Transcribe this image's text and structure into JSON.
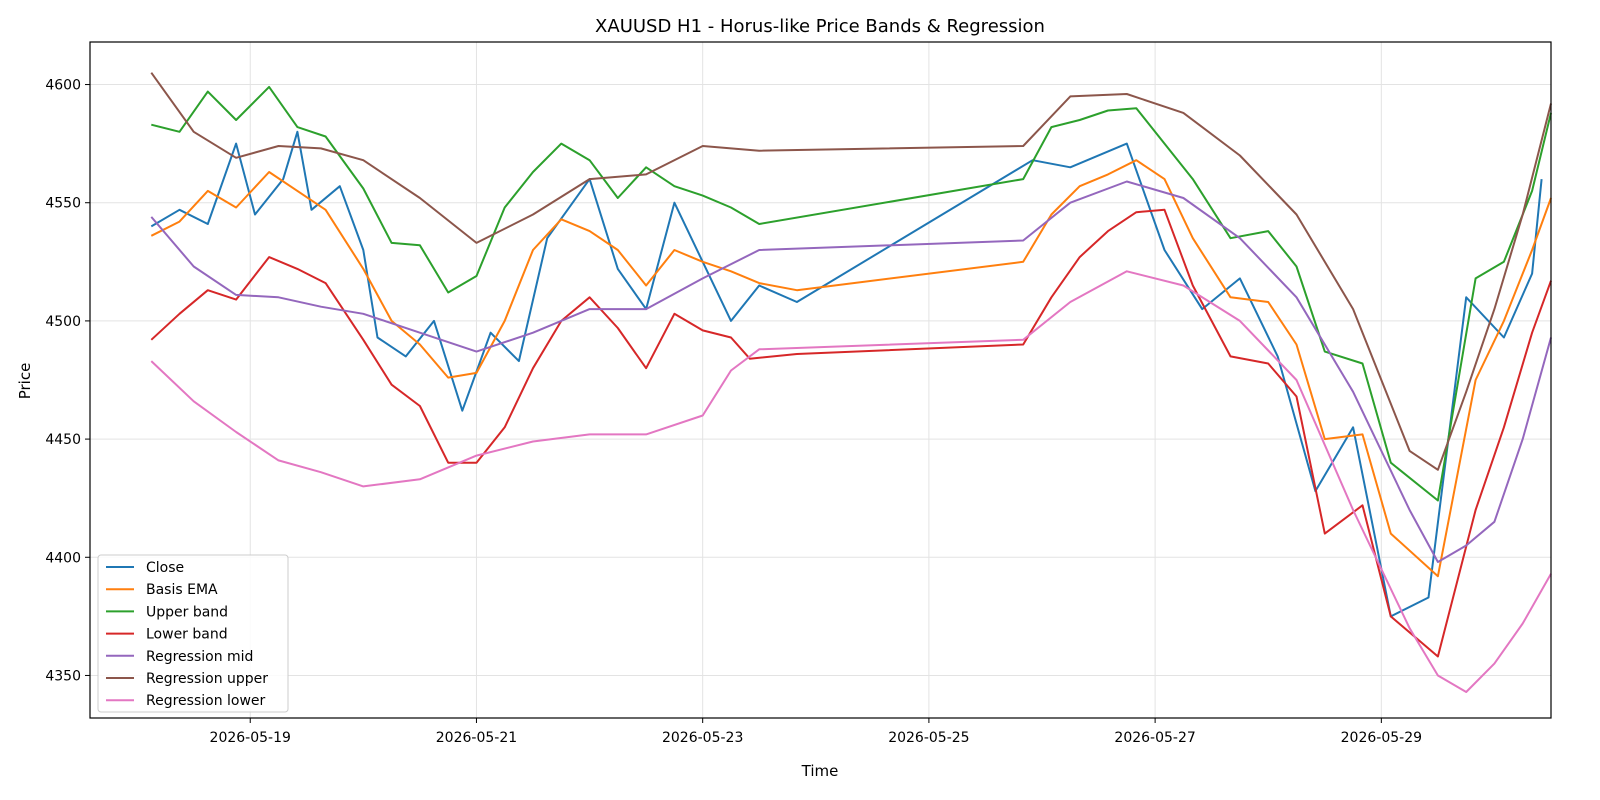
{
  "chart_data": {
    "type": "line",
    "title": "XAUUSD H1 - Horus-like Price Bands & Regression",
    "xlabel": "Time",
    "ylabel": "Price",
    "x_axis": "date",
    "xlim": [
      "2026-05-17 14:00",
      "2026-05-30 12:00"
    ],
    "ylim": [
      4332,
      4618
    ],
    "xticks": [
      "2026-05-19",
      "2026-05-21",
      "2026-05-23",
      "2026-05-25",
      "2026-05-27",
      "2026-05-29"
    ],
    "yticks": [
      4350,
      4400,
      4450,
      4500,
      4550,
      4600
    ],
    "grid": true,
    "legend_position": "lower-left",
    "series": [
      {
        "name": "Close",
        "color": "#1f77b4",
        "points": [
          [
            "2026-05-18 03:00",
            4540
          ],
          [
            "2026-05-18 09:00",
            4547
          ],
          [
            "2026-05-18 15:00",
            4541
          ],
          [
            "2026-05-18 21:00",
            4575
          ],
          [
            "2026-05-19 01:00",
            4545
          ],
          [
            "2026-05-19 07:00",
            4560
          ],
          [
            "2026-05-19 10:00",
            4580
          ],
          [
            "2026-05-19 13:00",
            4547
          ],
          [
            "2026-05-19 19:00",
            4557
          ],
          [
            "2026-05-20 00:00",
            4530
          ],
          [
            "2026-05-20 03:00",
            4493
          ],
          [
            "2026-05-20 09:00",
            4485
          ],
          [
            "2026-05-20 15:00",
            4500
          ],
          [
            "2026-05-20 21:00",
            4462
          ],
          [
            "2026-05-21 03:00",
            4495
          ],
          [
            "2026-05-21 09:00",
            4483
          ],
          [
            "2026-05-21 15:00",
            4535
          ],
          [
            "2026-05-22 00:00",
            4560
          ],
          [
            "2026-05-22 06:00",
            4522
          ],
          [
            "2026-05-22 12:00",
            4505
          ],
          [
            "2026-05-22 18:00",
            4550
          ],
          [
            "2026-05-23 00:00",
            4525
          ],
          [
            "2026-05-23 06:00",
            4500
          ],
          [
            "2026-05-23 12:00",
            4515
          ],
          [
            "2026-05-23 20:00",
            4508
          ],
          [
            "2026-05-25 22:00",
            4568
          ],
          [
            "2026-05-26 06:00",
            4565
          ],
          [
            "2026-05-26 18:00",
            4575
          ],
          [
            "2026-05-27 02:00",
            4530
          ],
          [
            "2026-05-27 10:00",
            4505
          ],
          [
            "2026-05-27 18:00",
            4518
          ],
          [
            "2026-05-28 02:00",
            4485
          ],
          [
            "2026-05-28 10:00",
            4428
          ],
          [
            "2026-05-28 18:00",
            4455
          ],
          [
            "2026-05-29 02:00",
            4375
          ],
          [
            "2026-05-29 10:00",
            4383
          ],
          [
            "2026-05-29 18:00",
            4510
          ],
          [
            "2026-05-30 02:00",
            4493
          ],
          [
            "2026-05-30 08:00",
            4520
          ],
          [
            "2026-05-30 10:00",
            4560
          ]
        ]
      },
      {
        "name": "Basis EMA",
        "color": "#ff7f0e",
        "points": [
          [
            "2026-05-18 03:00",
            4536
          ],
          [
            "2026-05-18 09:00",
            4542
          ],
          [
            "2026-05-18 15:00",
            4555
          ],
          [
            "2026-05-18 21:00",
            4548
          ],
          [
            "2026-05-19 04:00",
            4563
          ],
          [
            "2026-05-19 10:00",
            4555
          ],
          [
            "2026-05-19 16:00",
            4547
          ],
          [
            "2026-05-20 00:00",
            4522
          ],
          [
            "2026-05-20 06:00",
            4500
          ],
          [
            "2026-05-20 12:00",
            4490
          ],
          [
            "2026-05-20 18:00",
            4476
          ],
          [
            "2026-05-21 00:00",
            4478
          ],
          [
            "2026-05-21 06:00",
            4500
          ],
          [
            "2026-05-21 12:00",
            4530
          ],
          [
            "2026-05-21 18:00",
            4543
          ],
          [
            "2026-05-22 00:00",
            4538
          ],
          [
            "2026-05-22 06:00",
            4530
          ],
          [
            "2026-05-22 12:00",
            4515
          ],
          [
            "2026-05-22 18:00",
            4530
          ],
          [
            "2026-05-23 00:00",
            4525
          ],
          [
            "2026-05-23 06:00",
            4521
          ],
          [
            "2026-05-23 12:00",
            4516
          ],
          [
            "2026-05-23 20:00",
            4513
          ],
          [
            "2026-05-25 20:00",
            4525
          ],
          [
            "2026-05-26 02:00",
            4545
          ],
          [
            "2026-05-26 08:00",
            4557
          ],
          [
            "2026-05-26 14:00",
            4562
          ],
          [
            "2026-05-26 20:00",
            4568
          ],
          [
            "2026-05-27 02:00",
            4560
          ],
          [
            "2026-05-27 08:00",
            4535
          ],
          [
            "2026-05-27 16:00",
            4510
          ],
          [
            "2026-05-28 00:00",
            4508
          ],
          [
            "2026-05-28 06:00",
            4490
          ],
          [
            "2026-05-28 12:00",
            4450
          ],
          [
            "2026-05-28 20:00",
            4452
          ],
          [
            "2026-05-29 02:00",
            4410
          ],
          [
            "2026-05-29 12:00",
            4392
          ],
          [
            "2026-05-29 20:00",
            4475
          ],
          [
            "2026-05-30 02:00",
            4500
          ],
          [
            "2026-05-30 08:00",
            4530
          ],
          [
            "2026-05-30 12:00",
            4552
          ]
        ]
      },
      {
        "name": "Upper band",
        "color": "#2ca02c",
        "points": [
          [
            "2026-05-18 03:00",
            4583
          ],
          [
            "2026-05-18 09:00",
            4580
          ],
          [
            "2026-05-18 15:00",
            4597
          ],
          [
            "2026-05-18 21:00",
            4585
          ],
          [
            "2026-05-19 04:00",
            4599
          ],
          [
            "2026-05-19 10:00",
            4582
          ],
          [
            "2026-05-19 16:00",
            4578
          ],
          [
            "2026-05-20 00:00",
            4556
          ],
          [
            "2026-05-20 06:00",
            4533
          ],
          [
            "2026-05-20 12:00",
            4532
          ],
          [
            "2026-05-20 18:00",
            4512
          ],
          [
            "2026-05-21 00:00",
            4519
          ],
          [
            "2026-05-21 06:00",
            4548
          ],
          [
            "2026-05-21 12:00",
            4563
          ],
          [
            "2026-05-21 18:00",
            4575
          ],
          [
            "2026-05-22 00:00",
            4568
          ],
          [
            "2026-05-22 06:00",
            4552
          ],
          [
            "2026-05-22 12:00",
            4565
          ],
          [
            "2026-05-22 18:00",
            4557
          ],
          [
            "2026-05-23 00:00",
            4553
          ],
          [
            "2026-05-23 06:00",
            4548
          ],
          [
            "2026-05-23 12:00",
            4541
          ],
          [
            "2026-05-25 20:00",
            4560
          ],
          [
            "2026-05-26 02:00",
            4582
          ],
          [
            "2026-05-26 08:00",
            4585
          ],
          [
            "2026-05-26 14:00",
            4589
          ],
          [
            "2026-05-26 20:00",
            4590
          ],
          [
            "2026-05-27 02:00",
            4575
          ],
          [
            "2026-05-27 08:00",
            4560
          ],
          [
            "2026-05-27 16:00",
            4535
          ],
          [
            "2026-05-28 00:00",
            4538
          ],
          [
            "2026-05-28 06:00",
            4523
          ],
          [
            "2026-05-28 12:00",
            4487
          ],
          [
            "2026-05-28 20:00",
            4482
          ],
          [
            "2026-05-29 02:00",
            4440
          ],
          [
            "2026-05-29 12:00",
            4424
          ],
          [
            "2026-05-29 20:00",
            4518
          ],
          [
            "2026-05-30 02:00",
            4525
          ],
          [
            "2026-05-30 08:00",
            4555
          ],
          [
            "2026-05-30 12:00",
            4588
          ]
        ]
      },
      {
        "name": "Lower band",
        "color": "#d62728",
        "points": [
          [
            "2026-05-18 03:00",
            4492
          ],
          [
            "2026-05-18 09:00",
            4503
          ],
          [
            "2026-05-18 15:00",
            4513
          ],
          [
            "2026-05-18 21:00",
            4509
          ],
          [
            "2026-05-19 04:00",
            4527
          ],
          [
            "2026-05-19 10:00",
            4522
          ],
          [
            "2026-05-19 16:00",
            4516
          ],
          [
            "2026-05-20 00:00",
            4492
          ],
          [
            "2026-05-20 06:00",
            4473
          ],
          [
            "2026-05-20 12:00",
            4464
          ],
          [
            "2026-05-20 18:00",
            4440
          ],
          [
            "2026-05-21 00:00",
            4440
          ],
          [
            "2026-05-21 06:00",
            4455
          ],
          [
            "2026-05-21 12:00",
            4480
          ],
          [
            "2026-05-21 18:00",
            4500
          ],
          [
            "2026-05-22 00:00",
            4510
          ],
          [
            "2026-05-22 06:00",
            4497
          ],
          [
            "2026-05-22 12:00",
            4480
          ],
          [
            "2026-05-22 18:00",
            4503
          ],
          [
            "2026-05-23 00:00",
            4496
          ],
          [
            "2026-05-23 06:00",
            4493
          ],
          [
            "2026-05-23 10:00",
            4484
          ],
          [
            "2026-05-23 20:00",
            4486
          ],
          [
            "2026-05-25 20:00",
            4490
          ],
          [
            "2026-05-26 02:00",
            4510
          ],
          [
            "2026-05-26 08:00",
            4527
          ],
          [
            "2026-05-26 14:00",
            4538
          ],
          [
            "2026-05-26 20:00",
            4546
          ],
          [
            "2026-05-27 02:00",
            4547
          ],
          [
            "2026-05-27 08:00",
            4515
          ],
          [
            "2026-05-27 16:00",
            4485
          ],
          [
            "2026-05-28 00:00",
            4482
          ],
          [
            "2026-05-28 06:00",
            4468
          ],
          [
            "2026-05-28 12:00",
            4410
          ],
          [
            "2026-05-28 20:00",
            4422
          ],
          [
            "2026-05-29 02:00",
            4375
          ],
          [
            "2026-05-29 12:00",
            4358
          ],
          [
            "2026-05-29 20:00",
            4420
          ],
          [
            "2026-05-30 02:00",
            4455
          ],
          [
            "2026-05-30 08:00",
            4495
          ],
          [
            "2026-05-30 12:00",
            4517
          ]
        ]
      },
      {
        "name": "Regression mid",
        "color": "#9467bd",
        "points": [
          [
            "2026-05-18 03:00",
            4544
          ],
          [
            "2026-05-18 12:00",
            4523
          ],
          [
            "2026-05-18 21:00",
            4511
          ],
          [
            "2026-05-19 06:00",
            4510
          ],
          [
            "2026-05-19 15:00",
            4506
          ],
          [
            "2026-05-20 00:00",
            4503
          ],
          [
            "2026-05-20 12:00",
            4495
          ],
          [
            "2026-05-21 00:00",
            4487
          ],
          [
            "2026-05-21 12:00",
            4495
          ],
          [
            "2026-05-22 00:00",
            4505
          ],
          [
            "2026-05-22 12:00",
            4505
          ],
          [
            "2026-05-23 00:00",
            4518
          ],
          [
            "2026-05-23 12:00",
            4530
          ],
          [
            "2026-05-25 20:00",
            4534
          ],
          [
            "2026-05-26 06:00",
            4550
          ],
          [
            "2026-05-26 18:00",
            4559
          ],
          [
            "2026-05-27 06:00",
            4552
          ],
          [
            "2026-05-27 18:00",
            4535
          ],
          [
            "2026-05-28 06:00",
            4510
          ],
          [
            "2026-05-28 18:00",
            4470
          ],
          [
            "2026-05-29 06:00",
            4420
          ],
          [
            "2026-05-29 12:00",
            4398
          ],
          [
            "2026-05-29 18:00",
            4405
          ],
          [
            "2026-05-30 00:00",
            4415
          ],
          [
            "2026-05-30 06:00",
            4450
          ],
          [
            "2026-05-30 12:00",
            4493
          ]
        ]
      },
      {
        "name": "Regression upper",
        "color": "#8c564b",
        "points": [
          [
            "2026-05-18 03:00",
            4605
          ],
          [
            "2026-05-18 12:00",
            4580
          ],
          [
            "2026-05-18 21:00",
            4569
          ],
          [
            "2026-05-19 06:00",
            4574
          ],
          [
            "2026-05-19 15:00",
            4573
          ],
          [
            "2026-05-20 00:00",
            4568
          ],
          [
            "2026-05-20 12:00",
            4552
          ],
          [
            "2026-05-21 00:00",
            4533
          ],
          [
            "2026-05-21 12:00",
            4545
          ],
          [
            "2026-05-22 00:00",
            4560
          ],
          [
            "2026-05-22 12:00",
            4562
          ],
          [
            "2026-05-23 00:00",
            4574
          ],
          [
            "2026-05-23 12:00",
            4572
          ],
          [
            "2026-05-25 20:00",
            4574
          ],
          [
            "2026-05-26 06:00",
            4595
          ],
          [
            "2026-05-26 18:00",
            4596
          ],
          [
            "2026-05-27 06:00",
            4588
          ],
          [
            "2026-05-27 18:00",
            4570
          ],
          [
            "2026-05-28 06:00",
            4545
          ],
          [
            "2026-05-28 18:00",
            4505
          ],
          [
            "2026-05-29 06:00",
            4445
          ],
          [
            "2026-05-29 12:00",
            4437
          ],
          [
            "2026-05-29 18:00",
            4470
          ],
          [
            "2026-05-30 00:00",
            4505
          ],
          [
            "2026-05-30 06:00",
            4545
          ],
          [
            "2026-05-30 12:00",
            4592
          ]
        ]
      },
      {
        "name": "Regression lower",
        "color": "#e377c2",
        "points": [
          [
            "2026-05-18 03:00",
            4483
          ],
          [
            "2026-05-18 12:00",
            4466
          ],
          [
            "2026-05-18 21:00",
            4453
          ],
          [
            "2026-05-19 06:00",
            4441
          ],
          [
            "2026-05-19 15:00",
            4436
          ],
          [
            "2026-05-20 00:00",
            4430
          ],
          [
            "2026-05-20 12:00",
            4433
          ],
          [
            "2026-05-21 00:00",
            4443
          ],
          [
            "2026-05-21 12:00",
            4449
          ],
          [
            "2026-05-22 00:00",
            4452
          ],
          [
            "2026-05-22 12:00",
            4452
          ],
          [
            "2026-05-23 00:00",
            4460
          ],
          [
            "2026-05-23 06:00",
            4479
          ],
          [
            "2026-05-23 12:00",
            4488
          ],
          [
            "2026-05-25 20:00",
            4492
          ],
          [
            "2026-05-26 06:00",
            4508
          ],
          [
            "2026-05-26 18:00",
            4521
          ],
          [
            "2026-05-27 06:00",
            4515
          ],
          [
            "2026-05-27 18:00",
            4500
          ],
          [
            "2026-05-28 06:00",
            4475
          ],
          [
            "2026-05-28 18:00",
            4420
          ],
          [
            "2026-05-29 06:00",
            4370
          ],
          [
            "2026-05-29 12:00",
            4350
          ],
          [
            "2026-05-29 18:00",
            4343
          ],
          [
            "2026-05-30 00:00",
            4355
          ],
          [
            "2026-05-30 06:00",
            4372
          ],
          [
            "2026-05-30 12:00",
            4393
          ]
        ]
      }
    ]
  }
}
